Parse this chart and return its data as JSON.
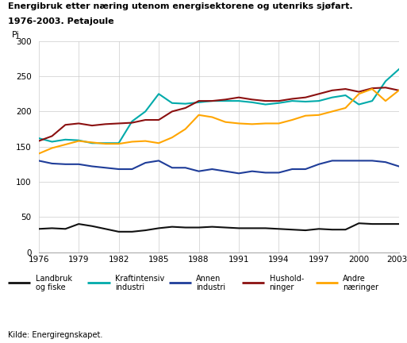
{
  "title_line1": "Energibruk etter næring utenom energisektorene og utenriks sjøfart.",
  "title_line2": "1976-2003. Petajoule",
  "ylabel": "Pj",
  "source": "Kilde: Energiregnskapet.",
  "years": [
    1976,
    1977,
    1978,
    1979,
    1980,
    1981,
    1982,
    1983,
    1984,
    1985,
    1986,
    1987,
    1988,
    1989,
    1990,
    1991,
    1992,
    1993,
    1994,
    1995,
    1996,
    1997,
    1998,
    1999,
    2000,
    2001,
    2002,
    2003
  ],
  "xtick_labels": [
    "1976",
    "1979",
    "1982",
    "1985",
    "1988",
    "1991",
    "1994",
    "1997",
    "2000",
    "2003*"
  ],
  "xtick_years": [
    1976,
    1979,
    1982,
    1985,
    1988,
    1991,
    1994,
    1997,
    2000,
    2003
  ],
  "landbruk": [
    33,
    34,
    33,
    40,
    37,
    33,
    29,
    29,
    31,
    34,
    36,
    35,
    35,
    36,
    35,
    34,
    34,
    34,
    33,
    32,
    31,
    33,
    32,
    32,
    41,
    40,
    40,
    40
  ],
  "kraftintensiv": [
    162,
    157,
    160,
    159,
    155,
    155,
    155,
    186,
    200,
    225,
    212,
    211,
    213,
    215,
    215,
    215,
    213,
    210,
    212,
    215,
    214,
    215,
    220,
    223,
    210,
    215,
    243,
    260
  ],
  "annen": [
    130,
    126,
    125,
    125,
    122,
    120,
    118,
    118,
    127,
    130,
    120,
    120,
    115,
    118,
    115,
    112,
    115,
    113,
    113,
    118,
    118,
    125,
    130,
    130,
    130,
    130,
    128,
    122
  ],
  "hushold": [
    158,
    165,
    181,
    183,
    180,
    182,
    183,
    184,
    188,
    188,
    200,
    205,
    215,
    215,
    217,
    220,
    217,
    215,
    215,
    218,
    220,
    225,
    230,
    232,
    228,
    233,
    234,
    230
  ],
  "andre": [
    140,
    148,
    153,
    158,
    156,
    154,
    154,
    157,
    158,
    155,
    163,
    175,
    195,
    192,
    185,
    183,
    182,
    183,
    183,
    188,
    194,
    195,
    200,
    205,
    225,
    232,
    215,
    230
  ],
  "colors": {
    "landbruk": "#111111",
    "kraftintensiv": "#00AAAA",
    "annen": "#1F3D99",
    "hushold": "#8B1010",
    "andre": "#FFA500"
  },
  "legend_labels": [
    "Landbruk\nog fiske",
    "Kraftintensiv\nindustri",
    "Annen\nindustri",
    "Hushold-\nninger",
    "Andre\nnæringer"
  ],
  "legend_keys": [
    "landbruk",
    "kraftintensiv",
    "annen",
    "hushold",
    "andre"
  ],
  "ylim": [
    0,
    300
  ],
  "yticks": [
    0,
    50,
    100,
    150,
    200,
    250,
    300
  ],
  "grid_color": "#cccccc"
}
